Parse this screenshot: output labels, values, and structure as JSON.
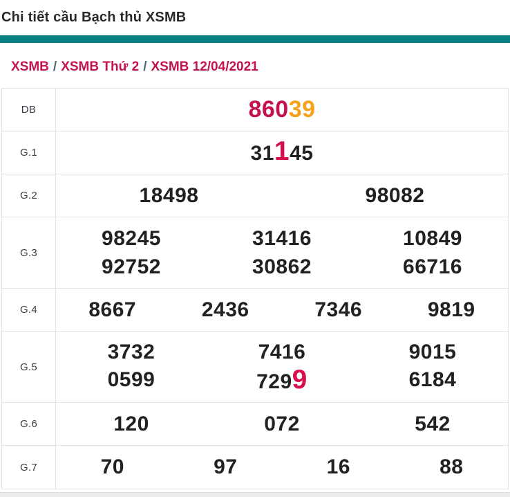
{
  "page": {
    "title": "Chi tiết cầu Bạch thủ XSMB"
  },
  "breadcrumb": {
    "separator": "/",
    "items": [
      "XSMB",
      "XSMB Thứ 2",
      "XSMB 12/04/2021"
    ]
  },
  "colors": {
    "accent_teal": "#087f82",
    "link_crimson": "#c4134f",
    "highlight_red": "#d5104c",
    "digit_orange": "#f7a01b",
    "number_dark": "#212121",
    "separator_slate": "#4f6b75"
  },
  "results_table": {
    "rows": [
      {
        "label": "DB",
        "emphasis": true,
        "lines": [
          [
            [
              {
                "t": "860",
                "c": "crimson"
              },
              {
                "t": "39",
                "c": "orange"
              }
            ]
          ]
        ]
      },
      {
        "label": "G.1",
        "lines": [
          [
            [
              {
                "t": "31"
              },
              {
                "t": "1",
                "c": "highlight"
              },
              {
                "t": "45"
              }
            ]
          ]
        ]
      },
      {
        "label": "G.2",
        "lines": [
          [
            [
              {
                "t": "18498"
              }
            ],
            [
              {
                "t": "98082"
              }
            ]
          ]
        ]
      },
      {
        "label": "G.3",
        "lines": [
          [
            [
              {
                "t": "98245"
              }
            ],
            [
              {
                "t": "31416"
              }
            ],
            [
              {
                "t": "10849"
              }
            ]
          ],
          [
            [
              {
                "t": "92752"
              }
            ],
            [
              {
                "t": "30862"
              }
            ],
            [
              {
                "t": "66716"
              }
            ]
          ]
        ]
      },
      {
        "label": "G.4",
        "lines": [
          [
            [
              {
                "t": "8667"
              }
            ],
            [
              {
                "t": "2436"
              }
            ],
            [
              {
                "t": "7346"
              }
            ],
            [
              {
                "t": "9819"
              }
            ]
          ]
        ]
      },
      {
        "label": "G.5",
        "lines": [
          [
            [
              {
                "t": "3732"
              }
            ],
            [
              {
                "t": "7416"
              }
            ],
            [
              {
                "t": "9015"
              }
            ]
          ],
          [
            [
              {
                "t": "0599"
              }
            ],
            [
              {
                "t": "729"
              },
              {
                "t": "9",
                "c": "highlight"
              }
            ],
            [
              {
                "t": "6184"
              }
            ]
          ]
        ]
      },
      {
        "label": "G.6",
        "lines": [
          [
            [
              {
                "t": "120"
              }
            ],
            [
              {
                "t": "072"
              }
            ],
            [
              {
                "t": "542"
              }
            ]
          ]
        ]
      },
      {
        "label": "G.7",
        "lines": [
          [
            [
              {
                "t": "70"
              }
            ],
            [
              {
                "t": "97"
              }
            ],
            [
              {
                "t": "16"
              }
            ],
            [
              {
                "t": "88"
              }
            ]
          ]
        ]
      }
    ]
  }
}
